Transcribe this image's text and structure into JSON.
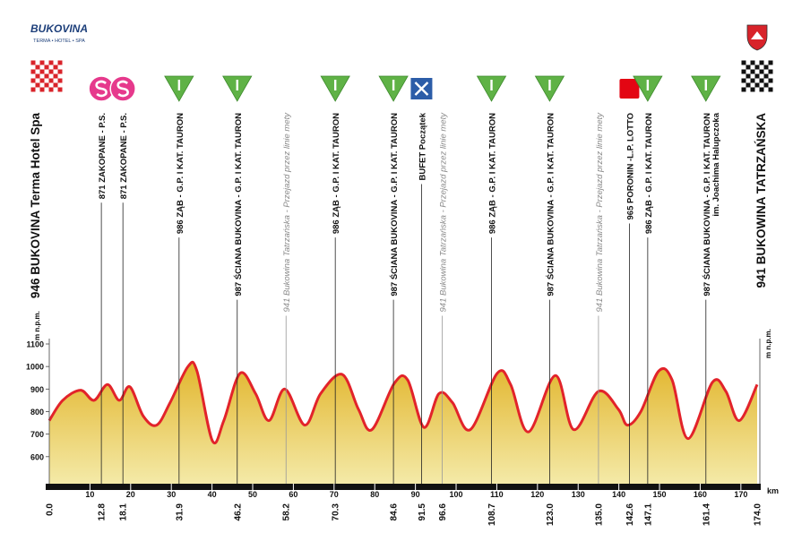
{
  "chart_data": {
    "type": "area",
    "logo_title": "BUKOVINA",
    "logo_subtitle": "TERMA • HOTEL • SPA",
    "y_axis_label": "m n.p.m.",
    "x_axis_label": "km",
    "color": "#e4bb33",
    "line_color": "#e2232a",
    "xlim": [
      0,
      174
    ],
    "ylim": [
      480,
      1100
    ],
    "yticks": [
      600,
      700,
      800,
      900,
      1000,
      1100
    ],
    "xticks": [
      10,
      20,
      30,
      40,
      50,
      60,
      70,
      80,
      90,
      100,
      110,
      120,
      130,
      140,
      150,
      160,
      170
    ],
    "x": [
      0,
      3.3,
      7.7,
      11.0,
      14.3,
      17.2,
      19.8,
      23.1,
      26.4,
      29.7,
      34.1,
      36.3,
      40.1,
      42.9,
      46.9,
      50.7,
      54.0,
      57.9,
      62.8,
      66.7,
      72.0,
      76.0,
      79.3,
      84.8,
      88.1,
      92.1,
      95.8,
      99.1,
      103.5,
      110.1,
      113.4,
      117.8,
      124.4,
      128.9,
      135.0,
      139.9,
      142.1,
      145.4,
      149.8,
      153.1,
      157.0,
      163.0,
      166.3,
      169.6,
      174.0
    ],
    "values": [
      760,
      850,
      895,
      850,
      920,
      850,
      910,
      780,
      740,
      840,
      1000,
      980,
      670,
      760,
      970,
      880,
      760,
      900,
      740,
      880,
      965,
      810,
      720,
      925,
      940,
      730,
      880,
      840,
      720,
      970,
      920,
      710,
      960,
      720,
      890,
      810,
      740,
      800,
      980,
      940,
      680,
      930,
      890,
      760,
      920
    ],
    "waypoints": [
      {
        "km": {
          "value": 0,
          "label": "0.0"
        },
        "icon": "start",
        "label": "946 BUKOVINA Terma Hotel Spa"
      },
      {
        "km": 12.8,
        "icon": "sprint",
        "label": "871 ZAKOPANE - P.S."
      },
      {
        "km": 18.1,
        "icon": "sprint",
        "label": "871 ZAKOPANE - P.S."
      },
      {
        "km": 31.9,
        "icon": "climb",
        "label": "986 ZĄB - G.P. I KAT. TAURON"
      },
      {
        "km": 46.2,
        "icon": "climb",
        "label": "987 ŚCIANA BUKOVINA - G.P. I KAT. TAURON"
      },
      {
        "km": 58.2,
        "icon": "pass",
        "label": "941 Bukowina Tatrzańska - Przejazd przez linie mety"
      },
      {
        "km": 70.3,
        "icon": "climb",
        "label": "986 ZĄB - G.P. I KAT. TAURON"
      },
      {
        "km": 84.6,
        "icon": "climb",
        "label": "987 ŚCIANA BUKOVINA - G.P. I KAT. TAURON"
      },
      {
        "km": 91.5,
        "icon": "feed",
        "label": "BUFET Początek"
      },
      {
        "km": 96.6,
        "icon": "pass",
        "label": "941 Bukowina Tatrzańska - Przejazd przez linie mety"
      },
      {
        "km": 108.7,
        "icon": "climb",
        "label": "986 ZĄB - G.P. I KAT. TAURON"
      },
      {
        "km": {
          "value": 123,
          "label": "123.0"
        },
        "icon": "climb",
        "label": "987 ŚCIANA BUKOVINA - G.P. I KAT. TAURON"
      },
      {
        "km": {
          "value": 135,
          "label": "135.0"
        },
        "icon": "pass",
        "label": "941 Bukowina Tatrzańska - Przejazd przez linie mety"
      },
      {
        "km": 142.6,
        "icon": "lotto",
        "label": "965 PORONIN -L.P. LOTTO"
      },
      {
        "km": 147.1,
        "icon": "climb",
        "label": "986 ZĄB - G.P. I KAT. TAURON"
      },
      {
        "km": 161.4,
        "icon": "climb",
        "label": "987 ŚCIANA BUKOVINA - G.P. I KAT. TAURON",
        "sublabel": "im. Joachima Halupczoka"
      },
      {
        "km": {
          "value": 174,
          "label": "174.0"
        },
        "icon": "finish",
        "label": "941 BUKOWINA TATRZAŃSKA"
      }
    ]
  }
}
